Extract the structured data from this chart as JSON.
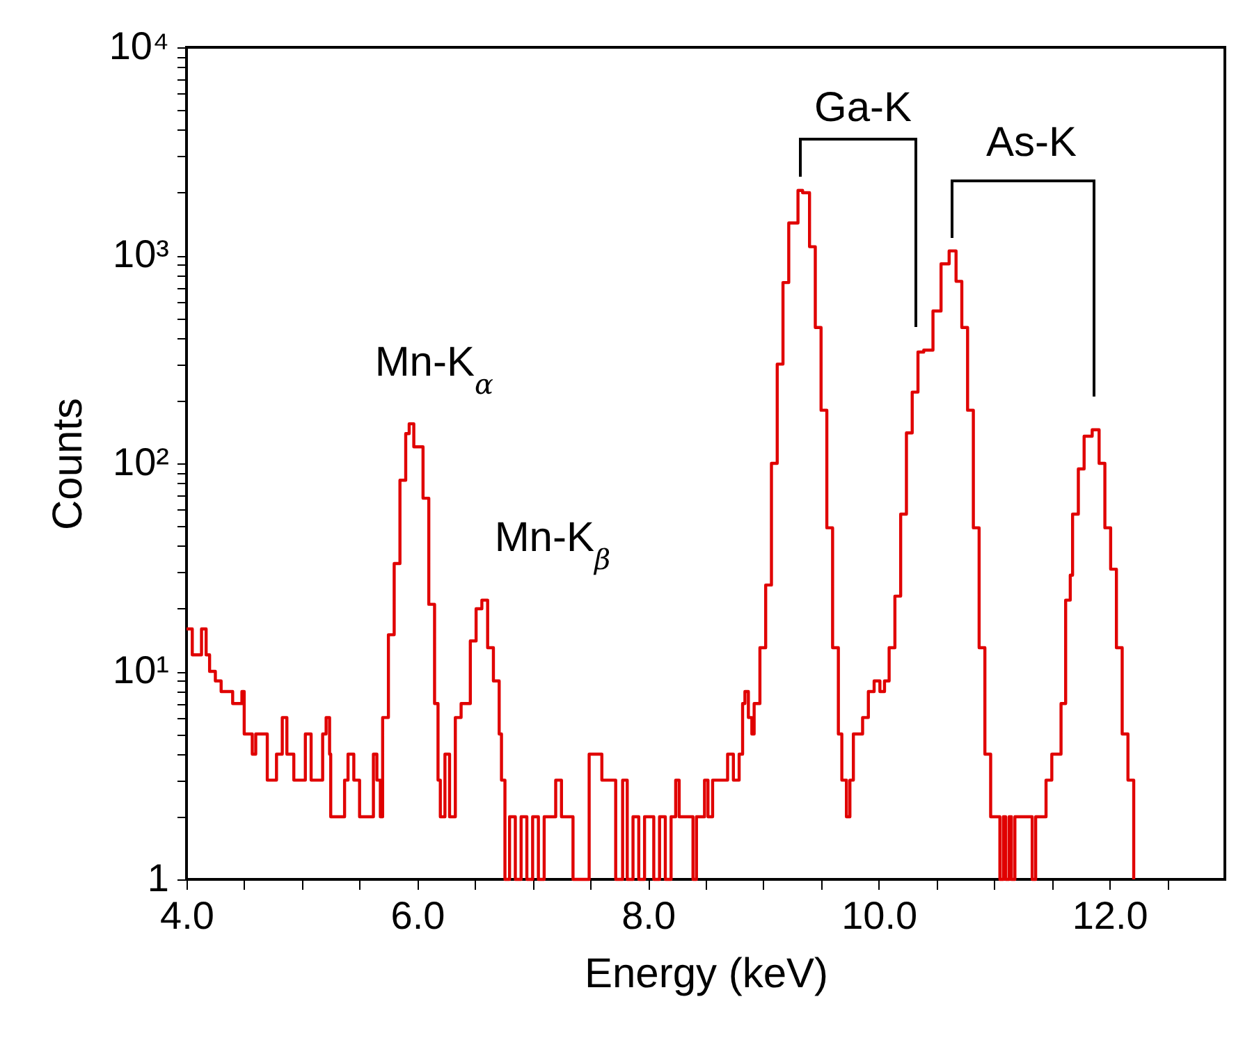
{
  "chart_data": {
    "type": "step",
    "xlabel": "Energy (keV)",
    "ylabel": "Counts",
    "log": "y",
    "grid": false,
    "marker": "none",
    "line_style": "solid",
    "xlim": [
      4,
      13
    ],
    "ylim": [
      1,
      10000
    ],
    "xticks": [
      {
        "value": 4,
        "label": "4.0"
      },
      {
        "value": 4.5,
        "label": null
      },
      {
        "value": 5,
        "label": null
      },
      {
        "value": 5.5,
        "label": null
      },
      {
        "value": 6,
        "label": "6.0"
      },
      {
        "value": 6.5,
        "label": null
      },
      {
        "value": 7,
        "label": null
      },
      {
        "value": 7.5,
        "label": null
      },
      {
        "value": 8,
        "label": "8.0"
      },
      {
        "value": 8.5,
        "label": null
      },
      {
        "value": 9,
        "label": null
      },
      {
        "value": 9.5,
        "label": null
      },
      {
        "value": 10,
        "label": "10.0"
      },
      {
        "value": 10.5,
        "label": null
      },
      {
        "value": 11,
        "label": null
      },
      {
        "value": 11.5,
        "label": null
      },
      {
        "value": 12,
        "label": "12.0"
      },
      {
        "value": 12.5,
        "label": null
      }
    ],
    "yticks": [
      1,
      {
        "value": 2,
        "label": null
      },
      {
        "value": 3,
        "label": null
      },
      {
        "value": 4,
        "label": null
      },
      {
        "value": 5,
        "label": null
      },
      {
        "value": 6,
        "label": null
      },
      {
        "value": 7,
        "label": null
      },
      {
        "value": 8,
        "label": null
      },
      {
        "value": 9,
        "label": null
      },
      {
        "value": 10,
        "label": "10¹"
      },
      {
        "value": 20,
        "label": null
      },
      {
        "value": 30,
        "label": null
      },
      {
        "value": 40,
        "label": null
      },
      {
        "value": 50,
        "label": null
      },
      {
        "value": 60,
        "label": null
      },
      {
        "value": 70,
        "label": null
      },
      {
        "value": 80,
        "label": null
      },
      {
        "value": 90,
        "label": null
      },
      {
        "value": 100,
        "label": "10²"
      },
      {
        "value": 200,
        "label": null
      },
      {
        "value": 300,
        "label": null
      },
      {
        "value": 400,
        "label": null
      },
      {
        "value": 500,
        "label": null
      },
      {
        "value": 600,
        "label": null
      },
      {
        "value": 700,
        "label": null
      },
      {
        "value": 800,
        "label": null
      },
      {
        "value": 900,
        "label": null
      },
      {
        "value": 1000,
        "label": "10³"
      },
      {
        "value": 2000,
        "label": null
      },
      {
        "value": 3000,
        "label": null
      },
      {
        "value": 4000,
        "label": null
      },
      {
        "value": 5000,
        "label": null
      },
      {
        "value": 6000,
        "label": null
      },
      {
        "value": 7000,
        "label": null
      },
      {
        "value": 8000,
        "label": null
      },
      {
        "value": 9000,
        "label": null
      },
      {
        "value": 10000,
        "label": "10⁴"
      }
    ],
    "series": [
      {
        "color": "#e00000",
        "x": [
          4.0,
          4.05,
          4.1,
          4.13,
          4.17,
          4.2,
          4.25,
          4.3,
          4.4,
          4.47,
          4.48,
          4.5,
          4.57,
          4.6,
          4.67,
          4.7,
          4.78,
          4.83,
          4.87,
          4.93,
          5.0,
          5.03,
          5.08,
          5.15,
          5.18,
          5.21,
          5.24,
          5.25,
          5.35,
          5.37,
          5.4,
          5.45,
          5.5,
          5.6,
          5.62,
          5.65,
          5.68,
          5.7,
          5.75,
          5.8,
          5.85,
          5.9,
          5.93,
          5.97,
          6.05,
          6.1,
          6.15,
          6.18,
          6.2,
          6.24,
          6.28,
          6.33,
          6.38,
          6.46,
          6.51,
          6.56,
          6.61,
          6.66,
          6.71,
          6.73,
          6.76,
          6.8,
          6.85,
          6.9,
          6.95,
          7.0,
          7.05,
          7.1,
          7.2,
          7.25,
          7.35,
          7.42,
          7.49,
          7.6,
          7.7,
          7.72,
          7.78,
          7.82,
          7.87,
          7.92,
          7.97,
          8.05,
          8.1,
          8.15,
          8.2,
          8.24,
          8.27,
          8.39,
          8.42,
          8.49,
          8.52,
          8.56,
          8.69,
          8.74,
          8.79,
          8.82,
          8.84,
          8.87,
          8.9,
          8.92,
          8.97,
          9.02,
          9.07,
          9.12,
          9.17,
          9.22,
          9.3,
          9.34,
          9.4,
          9.45,
          9.5,
          9.55,
          9.6,
          9.65,
          9.68,
          9.72,
          9.75,
          9.78,
          9.86,
          9.91,
          9.96,
          10.01,
          10.05,
          10.09,
          10.14,
          10.19,
          10.24,
          10.29,
          10.34,
          10.39,
          10.47,
          10.54,
          10.61,
          10.67,
          10.72,
          10.77,
          10.82,
          10.87,
          10.92,
          10.97,
          11.05,
          11.08,
          11.1,
          11.13,
          11.15,
          11.18,
          11.3,
          11.33,
          11.36,
          11.45,
          11.5,
          11.58,
          11.62,
          11.66,
          11.68,
          11.73,
          11.78,
          11.85,
          11.91,
          11.96,
          12.01,
          12.06,
          12.11,
          12.16,
          12.21
        ],
        "values": [
          16,
          12,
          12,
          16,
          12,
          10,
          9,
          8,
          7,
          7,
          8,
          5,
          4,
          5,
          5,
          3,
          4,
          6,
          4,
          3,
          3,
          5,
          3,
          3,
          5,
          6,
          4,
          2,
          2,
          3,
          4,
          3,
          2,
          2,
          4,
          3,
          2,
          6,
          15,
          33,
          83,
          139,
          155,
          120,
          68,
          21,
          7,
          3,
          2,
          4,
          2,
          6,
          7,
          14,
          20,
          22,
          13,
          9,
          5,
          3,
          1,
          2,
          1,
          2,
          1,
          2,
          1,
          2,
          3,
          2,
          1,
          1,
          4,
          3,
          3,
          1,
          3,
          1,
          2,
          1,
          2,
          1,
          2,
          1,
          2,
          3,
          2,
          1,
          2,
          3,
          2,
          3,
          4,
          3,
          4,
          7,
          8,
          6,
          5,
          7,
          13,
          26,
          100,
          300,
          740,
          1430,
          2050,
          2000,
          1100,
          450,
          180,
          49,
          13,
          5,
          3,
          2,
          3,
          5,
          6,
          8,
          9,
          8,
          9,
          13,
          23,
          57,
          140,
          220,
          343,
          350,
          540,
          910,
          1050,
          750,
          450,
          180,
          49,
          13,
          4,
          2,
          1,
          2,
          1,
          2,
          1,
          2,
          2,
          1,
          2,
          3,
          4,
          7,
          22,
          29,
          57,
          94,
          135,
          145,
          100,
          49,
          31,
          13,
          5,
          3,
          1
        ]
      }
    ],
    "annotations": [
      "Mn-K$_{α}$",
      "Mn-K$_{β}$",
      "Ga-K",
      "As-K"
    ]
  }
}
